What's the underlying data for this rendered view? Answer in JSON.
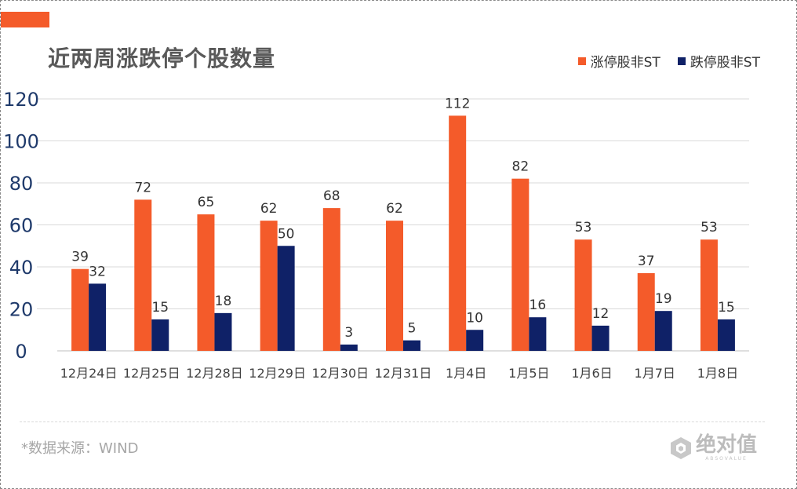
{
  "title": "近两周涨跌停个股数量",
  "source": "*数据来源：WIND",
  "brand": {
    "name": "绝对值",
    "sub": "ABSOVALUE",
    "icon": "hexagon-logo-icon"
  },
  "colors": {
    "accent": "#f45b2a",
    "series1": "#f45b2a",
    "series2": "#0f2167",
    "axis_text": "#1f3a6b",
    "grid": "#d9d9d9"
  },
  "chart_data": {
    "type": "bar",
    "categories": [
      "12月24日",
      "12月25日",
      "12月28日",
      "12月29日",
      "12月30日",
      "12月31日",
      "1月4日",
      "1月5日",
      "1月6日",
      "1月7日",
      "1月8日"
    ],
    "series": [
      {
        "name": "涨停股非ST",
        "values": [
          39,
          72,
          65,
          62,
          68,
          62,
          112,
          82,
          53,
          37,
          53
        ],
        "color": "#f45b2a"
      },
      {
        "name": "跌停股非ST",
        "values": [
          32,
          15,
          18,
          50,
          3,
          5,
          10,
          16,
          12,
          19,
          15
        ],
        "color": "#0f2167"
      }
    ],
    "title": "近两周涨跌停个股数量",
    "ylim": [
      0,
      120
    ],
    "yticks": [
      0,
      20,
      40,
      60,
      80,
      100,
      120
    ],
    "grid": true,
    "legend": "top-right",
    "data_labels": true
  }
}
